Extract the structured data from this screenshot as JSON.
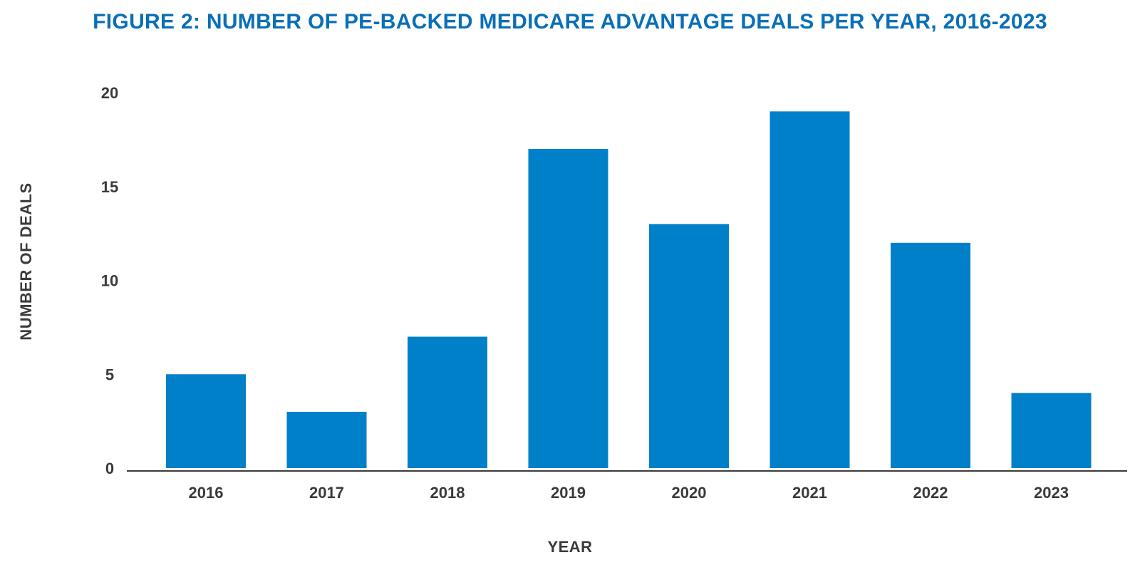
{
  "chart_data": {
    "type": "bar",
    "title": "FIGURE 2: NUMBER OF PE-BACKED MEDICARE ADVANTAGE DEALS PER YEAR, 2016-2023",
    "xlabel": "YEAR",
    "ylabel": "NUMBER OF DEALS",
    "categories": [
      "2016",
      "2017",
      "2018",
      "2019",
      "2020",
      "2021",
      "2022",
      "2023"
    ],
    "values": [
      5,
      3,
      7,
      17,
      13,
      19,
      12,
      4
    ],
    "ylim": [
      0,
      20
    ],
    "yticks": [
      "0",
      "5",
      "10",
      "15",
      "20"
    ],
    "grid": false,
    "legend": "none",
    "colors": {
      "bar": "#0080c8",
      "title": "#0a6fb7",
      "axis": "#3a3a3a"
    }
  }
}
